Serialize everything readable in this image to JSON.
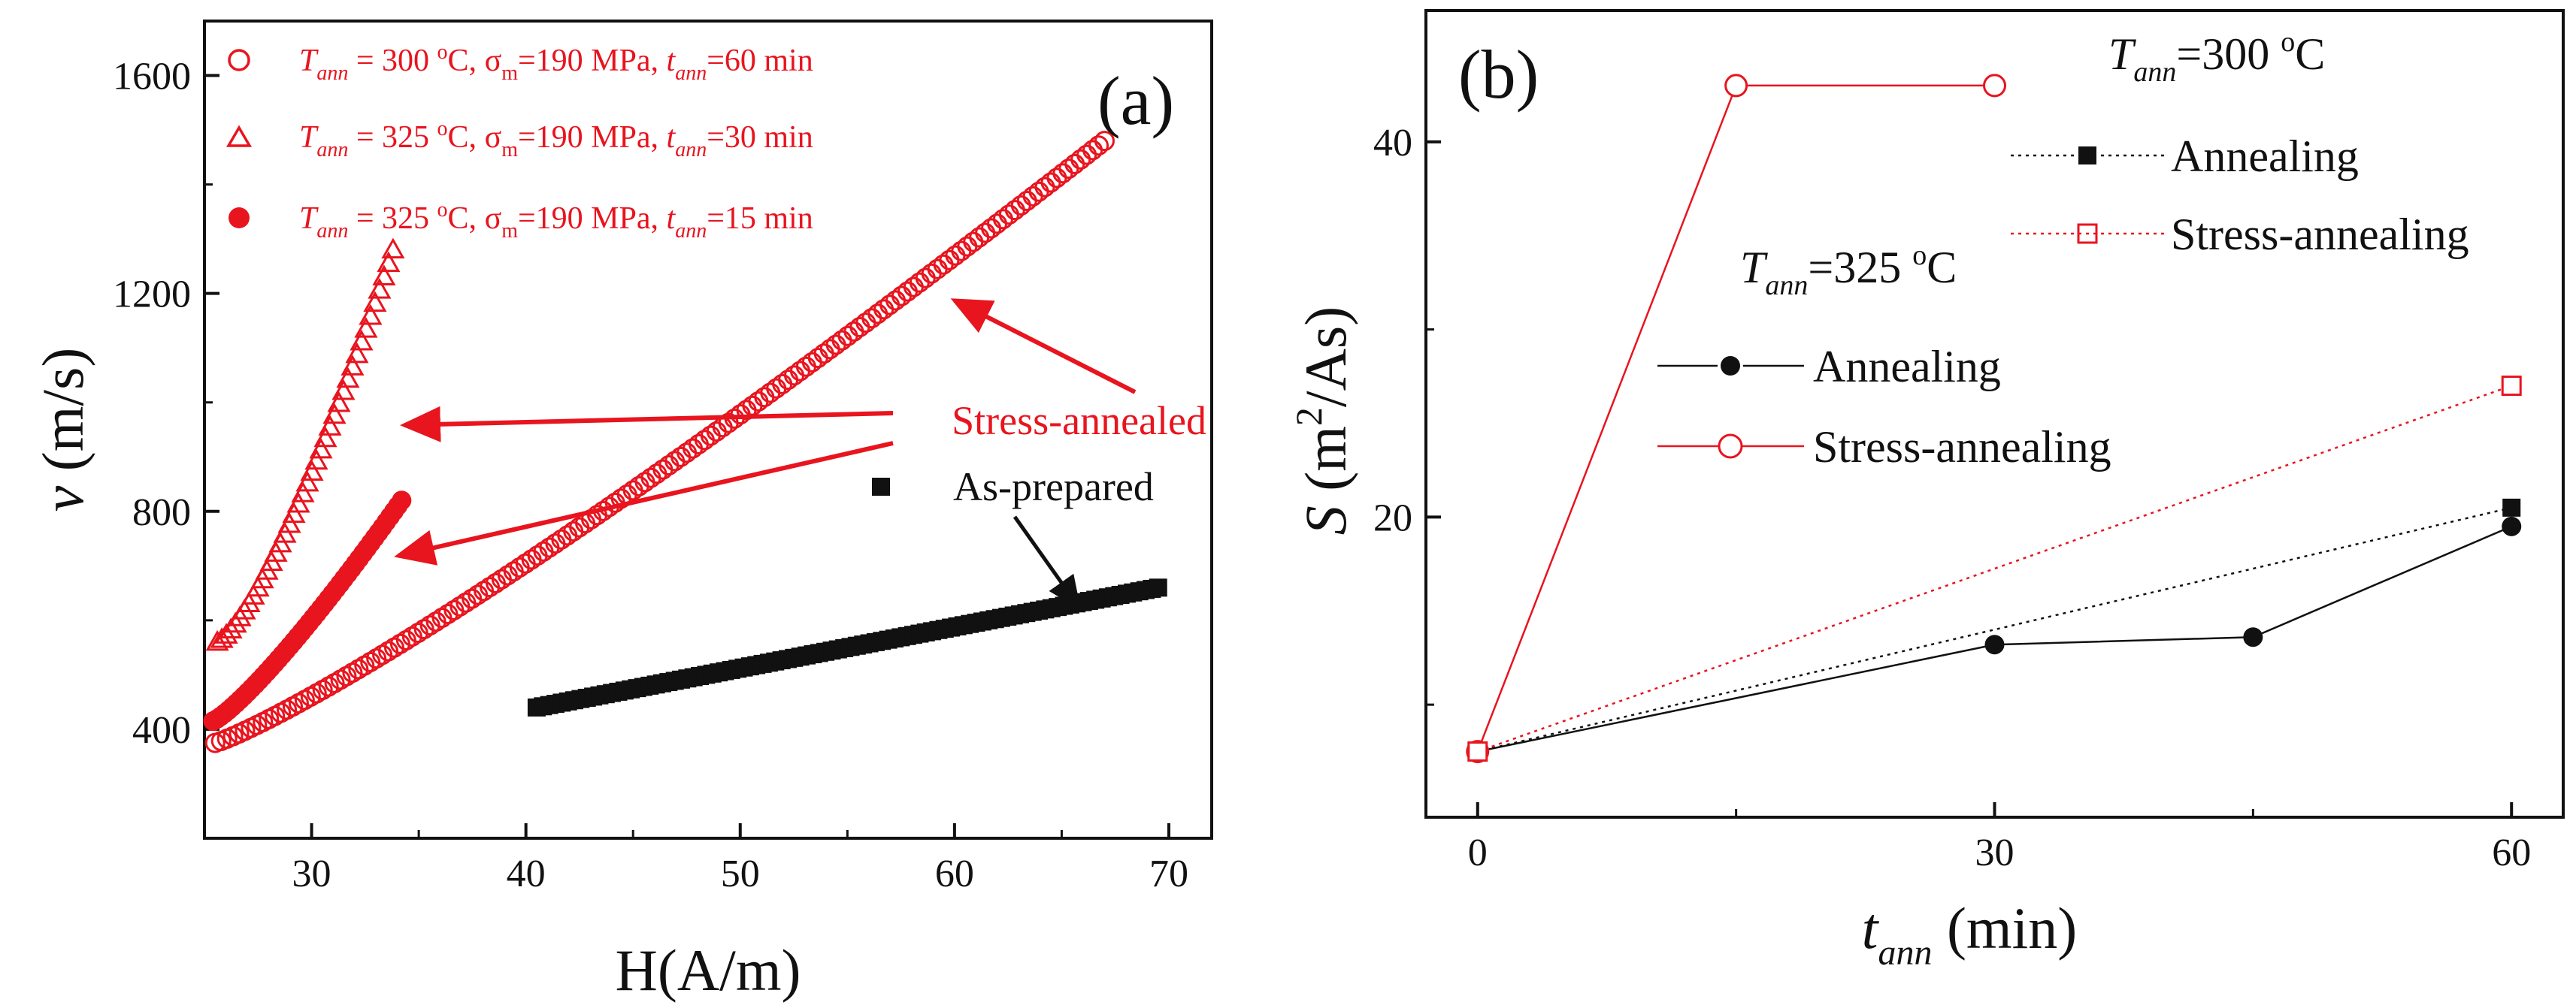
{
  "chart_data": [
    {
      "type": "scatter",
      "panel_label": "(a)",
      "xlabel": "H(A/m)",
      "ylabel_symbol": "v",
      "ylabel_unit": " (m/s)",
      "xlim": [
        25,
        72
      ],
      "ylim": [
        200,
        1700
      ],
      "xticks": [
        "30",
        "40",
        "50",
        "60",
        "70"
      ],
      "yticks": [
        "400",
        "800",
        "1200",
        "1600"
      ],
      "series": [
        {
          "name": "Tann=300 °C, σm=190 MPa, tann=60 min",
          "marker": "open-circle",
          "color": "#e8141e",
          "x_start": 25.5,
          "x_end": 67.0,
          "y_start": 375,
          "y_end": 1480,
          "n": 150
        },
        {
          "name": "Tann=325 °C, σm=190 MPa, tann=30 min",
          "marker": "open-triangle",
          "color": "#e8141e",
          "x_start": 25.6,
          "x_end": 33.8,
          "y_start": 560,
          "y_end": 1280,
          "n": 40
        },
        {
          "name": "Tann=325 °C, σm=190 MPa, tann=15 min",
          "marker": "filled-circle",
          "color": "#e8141e",
          "x_start": 25.4,
          "x_end": 34.2,
          "y_start": 415,
          "y_end": 820,
          "n": 50
        },
        {
          "name": "As-prepared",
          "marker": "filled-square",
          "color": "#111111",
          "x_start": 40.5,
          "x_end": 69.5,
          "y_start": 440,
          "y_end": 660,
          "n": 100
        }
      ],
      "legend": [
        {
          "T": "T",
          "Tsub": "ann",
          "eq1": " = 300 ",
          "deg": "o",
          "c": "C, ",
          "sigma": "σ",
          "sigsub": "m",
          "stress": "=190 MPa, ",
          "t": "t",
          "tsub": "ann",
          "time": "=60 min"
        },
        {
          "T": "T",
          "Tsub": "ann",
          "eq1": " = 325 ",
          "deg": "o",
          "c": "C, ",
          "sigma": "σ",
          "sigsub": "m",
          "stress": "=190 MPa, ",
          "t": "t",
          "tsub": "ann",
          "time": "=30 min"
        },
        {
          "T": "T",
          "Tsub": "ann",
          "eq1": " = 325 ",
          "deg": "o",
          "c": "C, ",
          "sigma": "σ",
          "sigsub": "m",
          "stress": "=190 MPa, ",
          "t": "t",
          "tsub": "ann",
          "time": "=15 min"
        }
      ],
      "annotations": {
        "stress_annealed": "Stress-annealed",
        "as_prepared": "As-prepared"
      }
    },
    {
      "type": "line",
      "panel_label": "(b)",
      "xlabel_symbol": "t",
      "xlabel_sub": "ann",
      "xlabel_unit": " (min)",
      "ylabel_symbol": "S",
      "ylabel_unit": " (m",
      "ylabel_sup": "2",
      "ylabel_end": "/As)",
      "xlim": [
        -3,
        63
      ],
      "ylim": [
        4,
        47
      ],
      "xticks": [
        "0",
        "30",
        "60"
      ],
      "yticks": [
        "20",
        "40"
      ],
      "series": [
        {
          "name": "325 °C Annealing",
          "style": "solid",
          "marker": "filled-circle",
          "color": "#111111",
          "x": [
            0,
            30,
            45,
            60
          ],
          "y": [
            7.5,
            13.2,
            13.6,
            19.5
          ]
        },
        {
          "name": "325 °C Stress-annealing",
          "style": "solid",
          "marker": "open-circle",
          "color": "#e8141e",
          "x": [
            0,
            15,
            30
          ],
          "y": [
            7.5,
            43.0,
            43.0
          ]
        },
        {
          "name": "300 °C Annealing",
          "style": "dotted",
          "marker": "filled-square",
          "color": "#111111",
          "x": [
            0,
            60
          ],
          "y": [
            7.5,
            20.5
          ]
        },
        {
          "name": "300 °C Stress-annealing",
          "style": "dotted",
          "marker": "open-square",
          "color": "#e8141e",
          "x": [
            0,
            60
          ],
          "y": [
            7.5,
            27.0
          ]
        }
      ],
      "legend": {
        "group300": {
          "T": "T",
          "sub": "ann",
          "val": "=300 ",
          "deg": "o",
          "c": "C"
        },
        "group325": {
          "T": "T",
          "sub": "ann",
          "val": "=325 ",
          "deg": "o",
          "c": "C"
        },
        "annealing": "Annealing",
        "stress_annealing": "Stress-annealing"
      }
    }
  ]
}
